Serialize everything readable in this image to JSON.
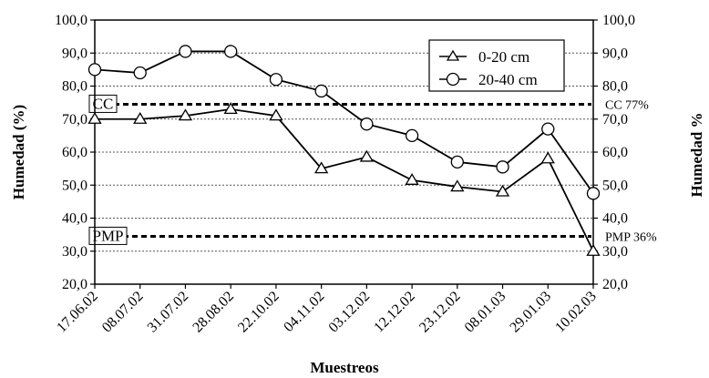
{
  "chart_data": {
    "type": "line",
    "xlabel": "Muestreos",
    "ylabel": "Humedad (%)",
    "y2label": "Humedad  %",
    "ylim": [
      20,
      100
    ],
    "y_ticks": [
      "20,0",
      "30,0",
      "40,0",
      "50,0",
      "60,0",
      "70,0",
      "80,0",
      "90,0",
      "100,0"
    ],
    "categories": [
      "17.06.02",
      "08.07.02",
      "31.07.02",
      "28.08.02",
      "22.10.02",
      "04.11.02",
      "03.12.02",
      "12.12.02",
      "23.12.02",
      "08.01.03",
      "29.01.03",
      "10.02.03"
    ],
    "series": [
      {
        "name": "0-20 cm",
        "marker": "triangle",
        "color": "#000000",
        "values": [
          70,
          70,
          71,
          73,
          71,
          55,
          58.5,
          51.5,
          49.5,
          48,
          58,
          30
        ]
      },
      {
        "name": "20-40 cm",
        "marker": "circle",
        "color": "#000000",
        "values": [
          85,
          84,
          90.5,
          90.5,
          82,
          78.5,
          68.5,
          65,
          57,
          55.5,
          67,
          47.5
        ]
      }
    ],
    "reference_lines": [
      {
        "label_left": "CC",
        "label_right": "CC 77%",
        "value": 74.5
      },
      {
        "label_left": "PMP",
        "label_right": "PMP 36%",
        "value": 34.5
      }
    ],
    "grid": true,
    "legend": "top-right"
  }
}
